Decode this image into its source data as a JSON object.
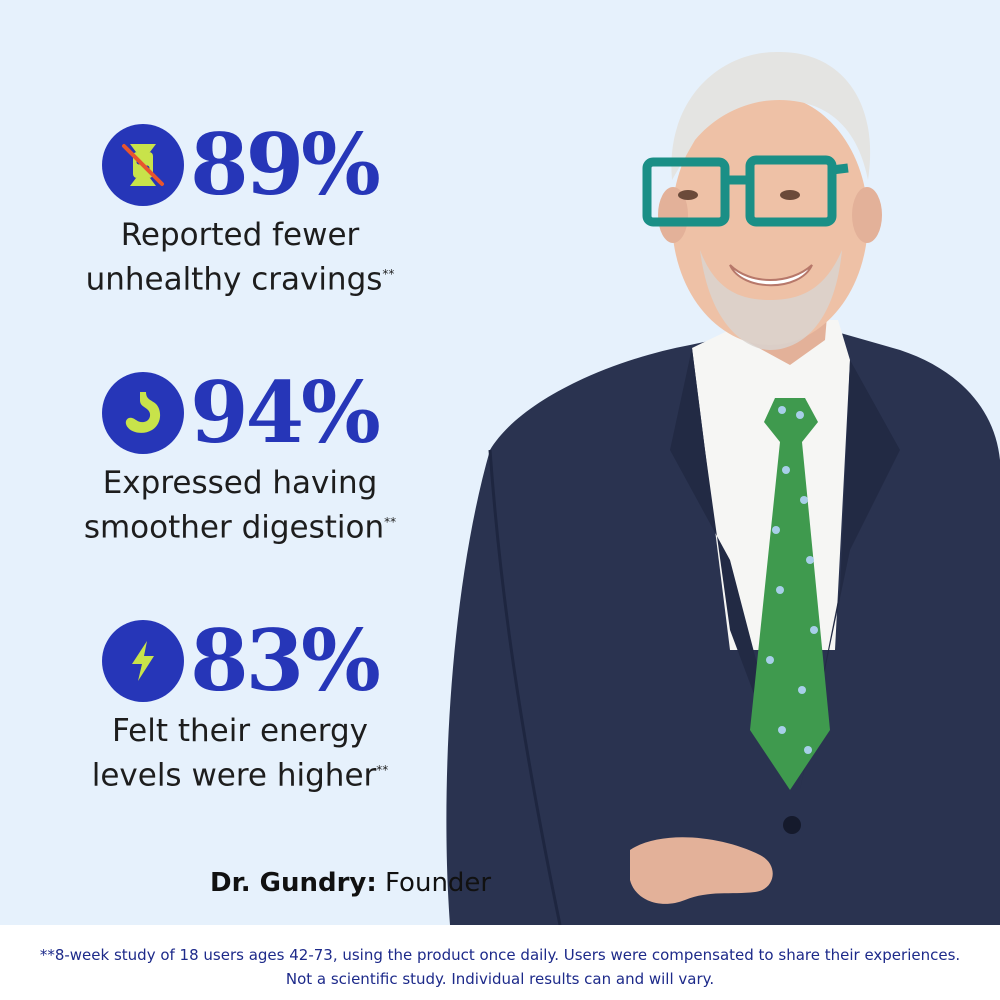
{
  "stats": [
    {
      "icon": "candy-crossed-icon",
      "value": "89%",
      "line1": "Reported fewer",
      "line2": "unhealthy cravings",
      "mark": "**"
    },
    {
      "icon": "stomach-icon",
      "value": "94%",
      "line1": "Expressed having",
      "line2": "smoother digestion",
      "mark": "**"
    },
    {
      "icon": "lightning-bolt-icon",
      "value": "83%",
      "line1": "Felt their energy",
      "line2": "levels were higher",
      "mark": "**"
    }
  ],
  "credit": {
    "name": "Dr. Gundry:",
    "role": "Founder"
  },
  "disclaimer": {
    "line1": "**8-week study of 18 users ages 42-73, using the product once daily. Users were compensated to share their experiences.",
    "line2": "Not a scientific study. Individual results can and will vary."
  },
  "colors": {
    "background": "#e6f1fc",
    "accent": "#2636b8",
    "icon_highlight": "#c8e34a",
    "text": "#1d1d1d",
    "disclaimer_text": "#1d2a8a",
    "suit": "#2a3350",
    "tie": "#3f9a4e",
    "glasses": "#1a8f86"
  }
}
